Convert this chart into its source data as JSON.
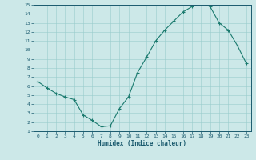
{
  "x": [
    0,
    1,
    2,
    3,
    4,
    5,
    6,
    7,
    8,
    9,
    10,
    11,
    12,
    13,
    14,
    15,
    16,
    17,
    18,
    19,
    20,
    21,
    22,
    23
  ],
  "y": [
    6.5,
    5.8,
    5.2,
    4.8,
    4.5,
    2.8,
    2.2,
    1.5,
    1.6,
    3.5,
    4.8,
    7.5,
    9.2,
    11.0,
    12.2,
    13.2,
    14.2,
    14.8,
    15.2,
    14.8,
    13.0,
    12.2,
    10.5,
    8.5
  ],
  "line_color": "#1a7a6e",
  "marker": "+",
  "xlabel": "Humidex (Indice chaleur)",
  "xlim": [
    -0.5,
    23.5
  ],
  "ylim": [
    1,
    15
  ],
  "yticks": [
    1,
    2,
    3,
    4,
    5,
    6,
    7,
    8,
    9,
    10,
    11,
    12,
    13,
    14,
    15
  ],
  "xticks": [
    0,
    1,
    2,
    3,
    4,
    5,
    6,
    7,
    8,
    9,
    10,
    11,
    12,
    13,
    14,
    15,
    16,
    17,
    18,
    19,
    20,
    21,
    22,
    23
  ],
  "bg_color": "#cce8e8",
  "grid_color": "#99cccc",
  "font_color": "#1a5a6e",
  "spine_color": "#1a5a6e"
}
